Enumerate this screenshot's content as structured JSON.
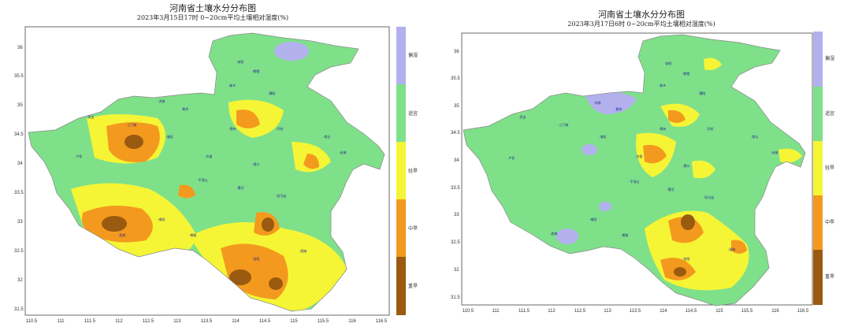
{
  "panels": [
    {
      "title": "河南省土壤水分分布图",
      "subtitle": "2023年3月15日17时 0~20cm平均土壤相对湿度(%)",
      "x_ticks": [
        "110.5",
        "111",
        "111.5",
        "112",
        "112.5",
        "113",
        "113.5",
        "114",
        "114.5",
        "115",
        "115.5",
        "116",
        "116.5"
      ],
      "y_ticks": [
        "36",
        "35.5",
        "35",
        "34.5",
        "34",
        "33.5",
        "33",
        "32.5",
        "32",
        "31.5"
      ],
      "legend": [
        "偏湿",
        "适宜",
        "轻旱",
        "中旱",
        "重旱"
      ]
    },
    {
      "title": "河南省土壤水分分布图",
      "subtitle": "2023年3月17日6时 0~20cm平均土壤相对湿度(%)",
      "x_ticks": [
        "110.5",
        "111",
        "111.5",
        "112",
        "112.5",
        "113",
        "113.5",
        "114",
        "114.5",
        "115",
        "115.5",
        "116",
        "116.5"
      ],
      "y_ticks": [
        "36",
        "35.5",
        "35",
        "34.5",
        "34",
        "33.5",
        "33",
        "32.5",
        "32",
        "31.5"
      ],
      "legend": [
        "偏湿",
        "适宜",
        "轻旱",
        "中旱",
        "重旱"
      ]
    }
  ],
  "legend_colors": {
    "偏湿": "#b3b0ee",
    "适宜": "#7fe08a",
    "轻旱": "#f5f536",
    "中旱": "#f39a1e",
    "重旱": "#9a5a10"
  }
}
